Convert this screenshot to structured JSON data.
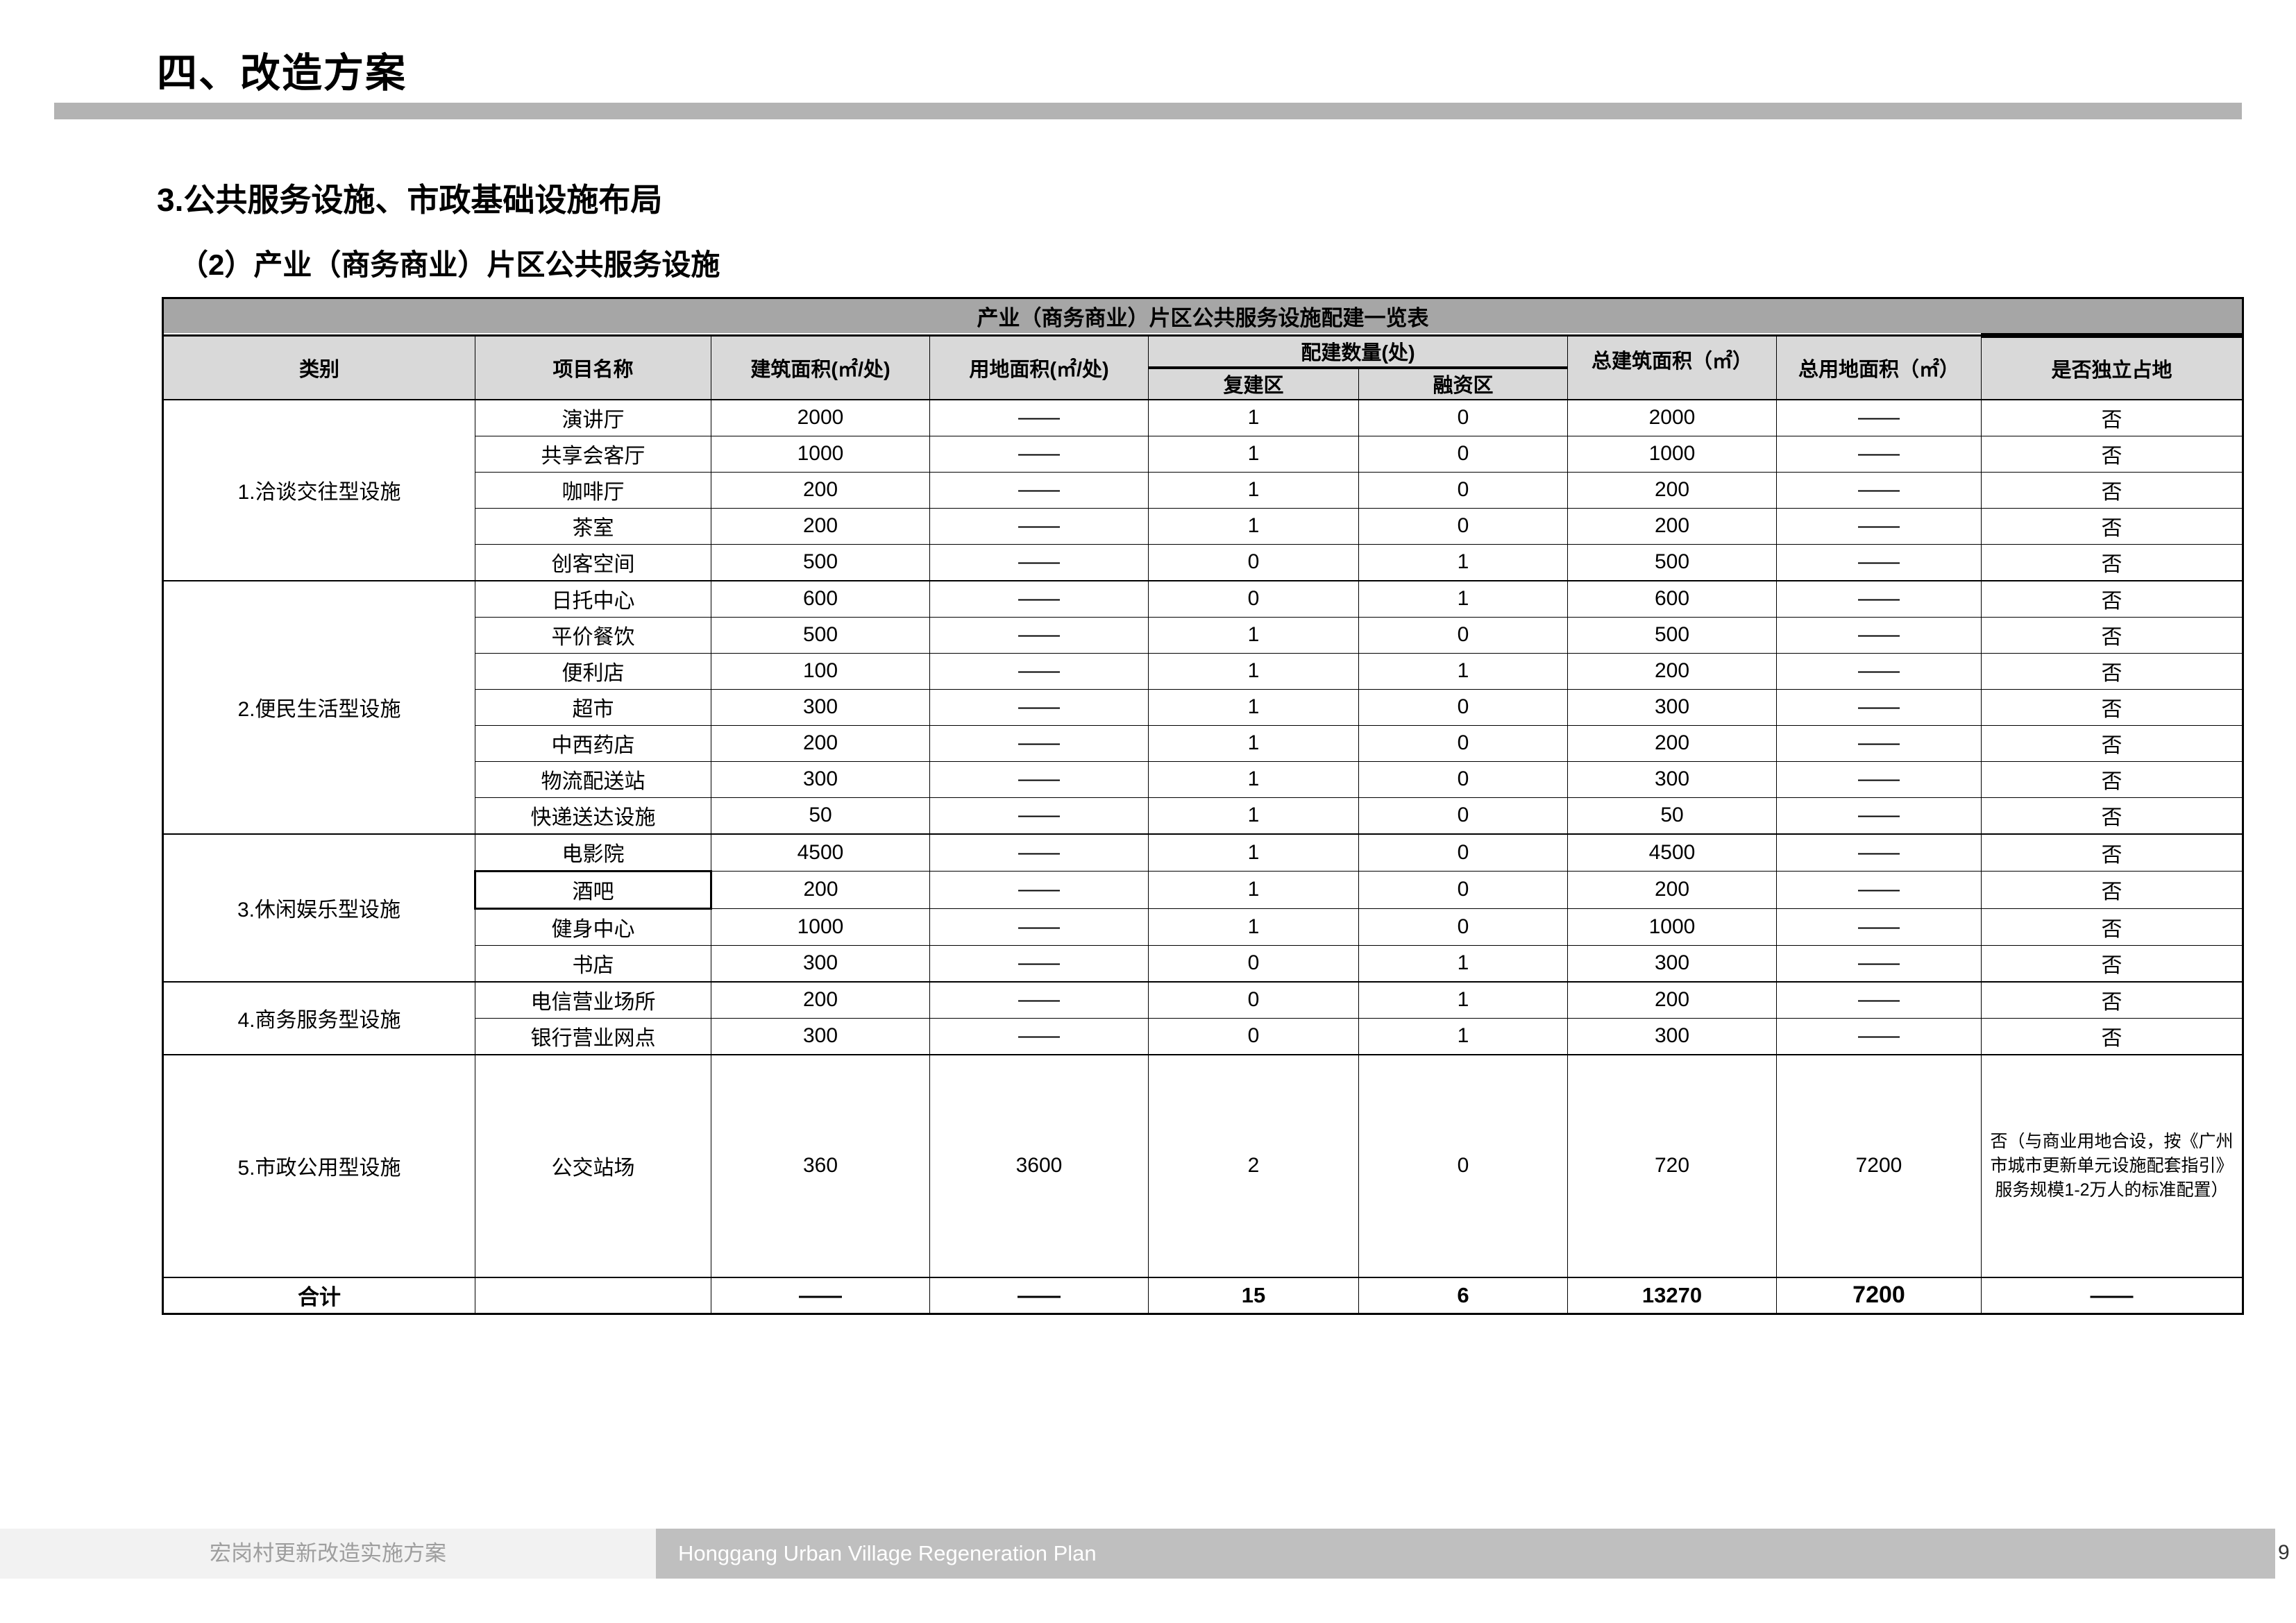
{
  "page": {
    "title": "四、改造方案",
    "section": "3.公共服务设施、市政基础设施布局",
    "subsection": "（2）产业（商务商业）片区公共服务设施",
    "page_number": "9"
  },
  "footer": {
    "left": "宏岗村更新改造实施方案",
    "right": "Honggang Urban Village Regeneration Plan"
  },
  "colors": {
    "table_title_bg": "#a6a6a6",
    "table_header_bg": "#d9d9d9",
    "divider_bar": "#b3b3b3",
    "footer_left_bg": "#f2f2f2",
    "footer_right_bg": "#bfbfbf",
    "footer_left_text": "#9e9e9e",
    "footer_right_text": "#ffffff",
    "border": "#000000"
  },
  "table": {
    "title": "产业（商务商业）片区公共服务设施配建一览表",
    "headers": {
      "category": "类别",
      "project": "项目名称",
      "build_area": "建筑面积(㎡/处)",
      "land_area": "用地面积(㎡/处)",
      "quantity": "配建数量(处)",
      "rebuild": "复建区",
      "finance": "融资区",
      "total_build": "总建筑面积（㎡）",
      "total_land": "总用地面积（㎡）",
      "independent": "是否独立占地"
    },
    "selected_project": "酒吧",
    "groups": [
      {
        "category": "1.洽谈交往型设施",
        "rows": [
          [
            "演讲厅",
            "2000",
            "——",
            "1",
            "0",
            "2000",
            "——",
            "否"
          ],
          [
            "共享会客厅",
            "1000",
            "——",
            "1",
            "0",
            "1000",
            "——",
            "否"
          ],
          [
            "咖啡厅",
            "200",
            "——",
            "1",
            "0",
            "200",
            "——",
            "否"
          ],
          [
            "茶室",
            "200",
            "——",
            "1",
            "0",
            "200",
            "——",
            "否"
          ],
          [
            "创客空间",
            "500",
            "——",
            "0",
            "1",
            "500",
            "——",
            "否"
          ]
        ]
      },
      {
        "category": "2.便民生活型设施",
        "rows": [
          [
            "日托中心",
            "600",
            "——",
            "0",
            "1",
            "600",
            "——",
            "否"
          ],
          [
            "平价餐饮",
            "500",
            "——",
            "1",
            "0",
            "500",
            "——",
            "否"
          ],
          [
            "便利店",
            "100",
            "——",
            "1",
            "1",
            "200",
            "——",
            "否"
          ],
          [
            "超市",
            "300",
            "——",
            "1",
            "0",
            "300",
            "——",
            "否"
          ],
          [
            "中西药店",
            "200",
            "——",
            "1",
            "0",
            "200",
            "——",
            "否"
          ],
          [
            "物流配送站",
            "300",
            "——",
            "1",
            "0",
            "300",
            "——",
            "否"
          ],
          [
            "快递送达设施",
            "50",
            "——",
            "1",
            "0",
            "50",
            "——",
            "否"
          ]
        ]
      },
      {
        "category": "3.休闲娱乐型设施",
        "rows": [
          [
            "电影院",
            "4500",
            "——",
            "1",
            "0",
            "4500",
            "——",
            "否"
          ],
          [
            "酒吧",
            "200",
            "——",
            "1",
            "0",
            "200",
            "——",
            "否"
          ],
          [
            "健身中心",
            "1000",
            "——",
            "1",
            "0",
            "1000",
            "——",
            "否"
          ],
          [
            "书店",
            "300",
            "——",
            "0",
            "1",
            "300",
            "——",
            "否"
          ]
        ]
      },
      {
        "category": "4.商务服务型设施",
        "rows": [
          [
            "电信营业场所",
            "200",
            "——",
            "0",
            "1",
            "200",
            "——",
            "否"
          ],
          [
            "银行营业网点",
            "300",
            "——",
            "0",
            "1",
            "300",
            "——",
            "否"
          ]
        ]
      },
      {
        "category": "5.市政公用型设施",
        "rows": [
          [
            "公交站场",
            "360",
            "3600",
            "2",
            "0",
            "720",
            "7200",
            "否（与商业用地合设，按《广州市城市更新单元设施配套指引》服务规模1-2万人的标准配置）"
          ]
        ]
      }
    ],
    "totals": {
      "label": "合计",
      "project": "",
      "build_area": "——",
      "land_area": "——",
      "rebuild": "15",
      "finance": "6",
      "total_build": "13270",
      "total_land": "7200",
      "independent": "——"
    }
  }
}
